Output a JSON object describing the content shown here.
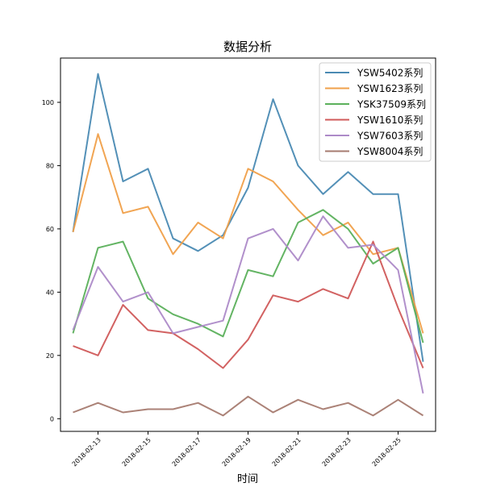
{
  "chart_data": {
    "type": "line",
    "title": "数据分析",
    "xlabel": "时间",
    "ylabel": "",
    "x": [
      "2018-02-12",
      "2018-02-13",
      "2018-02-14",
      "2018-02-15",
      "2018-02-16",
      "2018-02-17",
      "2018-02-18",
      "2018-02-19",
      "2018-02-20",
      "2018-02-21",
      "2018-02-22",
      "2018-02-23",
      "2018-02-24",
      "2018-02-25",
      "2018-02-26"
    ],
    "x_tick_labels": [
      "2018-02-13",
      "2018-02-15",
      "2018-02-17",
      "2018-02-19",
      "2018-02-21",
      "2018-02-23",
      "2018-02-25"
    ],
    "y_ticks": [
      0,
      20,
      40,
      60,
      80,
      100
    ],
    "ylim": [
      -4,
      114
    ],
    "xlim": [
      "2018-02-11T12:00",
      "2018-02-26T12:00"
    ],
    "grid": false,
    "legend_position": "top-right",
    "series": [
      {
        "name": "YSW5402系列",
        "color": "#4a8ab3",
        "values": [
          59,
          109,
          75,
          79,
          57,
          53,
          58,
          73,
          101,
          80,
          71,
          78,
          71,
          71,
          18
        ]
      },
      {
        "name": "YSW1623系列",
        "color": "#f0a04a",
        "values": [
          59,
          90,
          65,
          67,
          52,
          62,
          57,
          79,
          75,
          66,
          58,
          62,
          52,
          54,
          27
        ]
      },
      {
        "name": "YSK37509系列",
        "color": "#5bb05b",
        "values": [
          27,
          54,
          56,
          38,
          33,
          30,
          26,
          47,
          45,
          62,
          66,
          60,
          49,
          54,
          24
        ]
      },
      {
        "name": "YSW1610系列",
        "color": "#d05a5a",
        "values": [
          23,
          20,
          36,
          28,
          27,
          22,
          16,
          25,
          39,
          37,
          41,
          38,
          56,
          35,
          16
        ]
      },
      {
        "name": "YSW7603系列",
        "color": "#ad8ac8",
        "values": [
          28,
          48,
          37,
          40,
          27,
          29,
          31,
          57,
          60,
          50,
          64,
          54,
          55,
          47,
          8
        ]
      },
      {
        "name": "YSW8004系列",
        "color": "#a67b70",
        "values": [
          2,
          5,
          2,
          3,
          3,
          5,
          1,
          7,
          2,
          6,
          3,
          5,
          1,
          6,
          1
        ]
      }
    ]
  }
}
